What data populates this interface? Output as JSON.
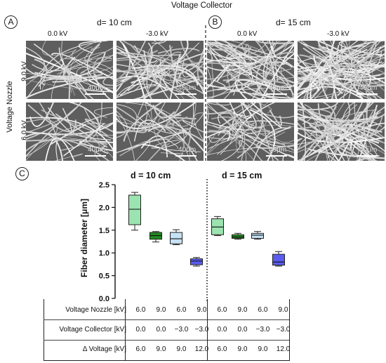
{
  "figure_title": "Voltage Collector",
  "panel_A": {
    "letter": "A",
    "distance_label": "d= 10 cm",
    "columns": [
      "0.0 kV",
      "-3.0 kV"
    ]
  },
  "panel_B": {
    "letter": "B",
    "distance_label": "d= 15 cm",
    "columns": [
      "0.0 kV",
      "-3.0 kV"
    ]
  },
  "row_axis_label": "Voltage Nozzle",
  "rows": [
    "9.0 kV",
    "6.0 kV"
  ],
  "scale_bar_label": "40μm",
  "panel_C": {
    "letter": "C",
    "group_titles": [
      "d = 10 cm",
      "d = 15 cm"
    ]
  },
  "table": {
    "rows": [
      {
        "label": "Voltage Nozzle [kV]",
        "values": [
          "6.0",
          "9.0",
          "6.0",
          "9.0",
          "6.0",
          "9.0",
          "6.0",
          "9.0"
        ]
      },
      {
        "label": "Voltage Collector [kV]",
        "values": [
          "0.0",
          "0.0",
          "−3.0",
          "−3.0",
          "0.0",
          "0.0",
          "−3.0",
          "−3.0"
        ]
      },
      {
        "label": "Δ Voltage [kV]",
        "values": [
          "6.0",
          "9.0",
          "9.0",
          "12.0",
          "6.0",
          "9.0",
          "9.0",
          "12.0"
        ]
      }
    ]
  },
  "chart_data": {
    "type": "box",
    "ylabel": "Fiber diameter [μm]",
    "ylim": [
      0.0,
      2.5
    ],
    "yticks": [
      "0.0",
      "0.5",
      "1.0",
      "1.5",
      "2.0",
      "2.5"
    ],
    "colors": [
      "#9be3b0",
      "#1f8a1f",
      "#c6e2f5",
      "#5a5cf0",
      "#9be3b0",
      "#1f8a1f",
      "#c6e2f5",
      "#5a5cf0"
    ],
    "boxes": [
      {
        "min": 1.5,
        "q1": 1.62,
        "median": 1.96,
        "q3": 2.27,
        "max": 2.33
      },
      {
        "min": 1.24,
        "q1": 1.3,
        "median": 1.38,
        "q3": 1.45,
        "max": 1.47
      },
      {
        "min": 1.18,
        "q1": 1.2,
        "median": 1.31,
        "q3": 1.45,
        "max": 1.51
      },
      {
        "min": 0.71,
        "q1": 0.74,
        "median": 0.82,
        "q3": 0.87,
        "max": 0.9
      },
      {
        "min": 1.38,
        "q1": 1.4,
        "median": 1.57,
        "q3": 1.75,
        "max": 1.8
      },
      {
        "min": 1.3,
        "q1": 1.32,
        "median": 1.35,
        "q3": 1.4,
        "max": 1.43
      },
      {
        "min": 1.3,
        "q1": 1.32,
        "median": 1.39,
        "q3": 1.43,
        "max": 1.47
      },
      {
        "min": 0.71,
        "q1": 0.73,
        "median": 0.8,
        "q3": 0.97,
        "max": 1.03
      }
    ]
  }
}
